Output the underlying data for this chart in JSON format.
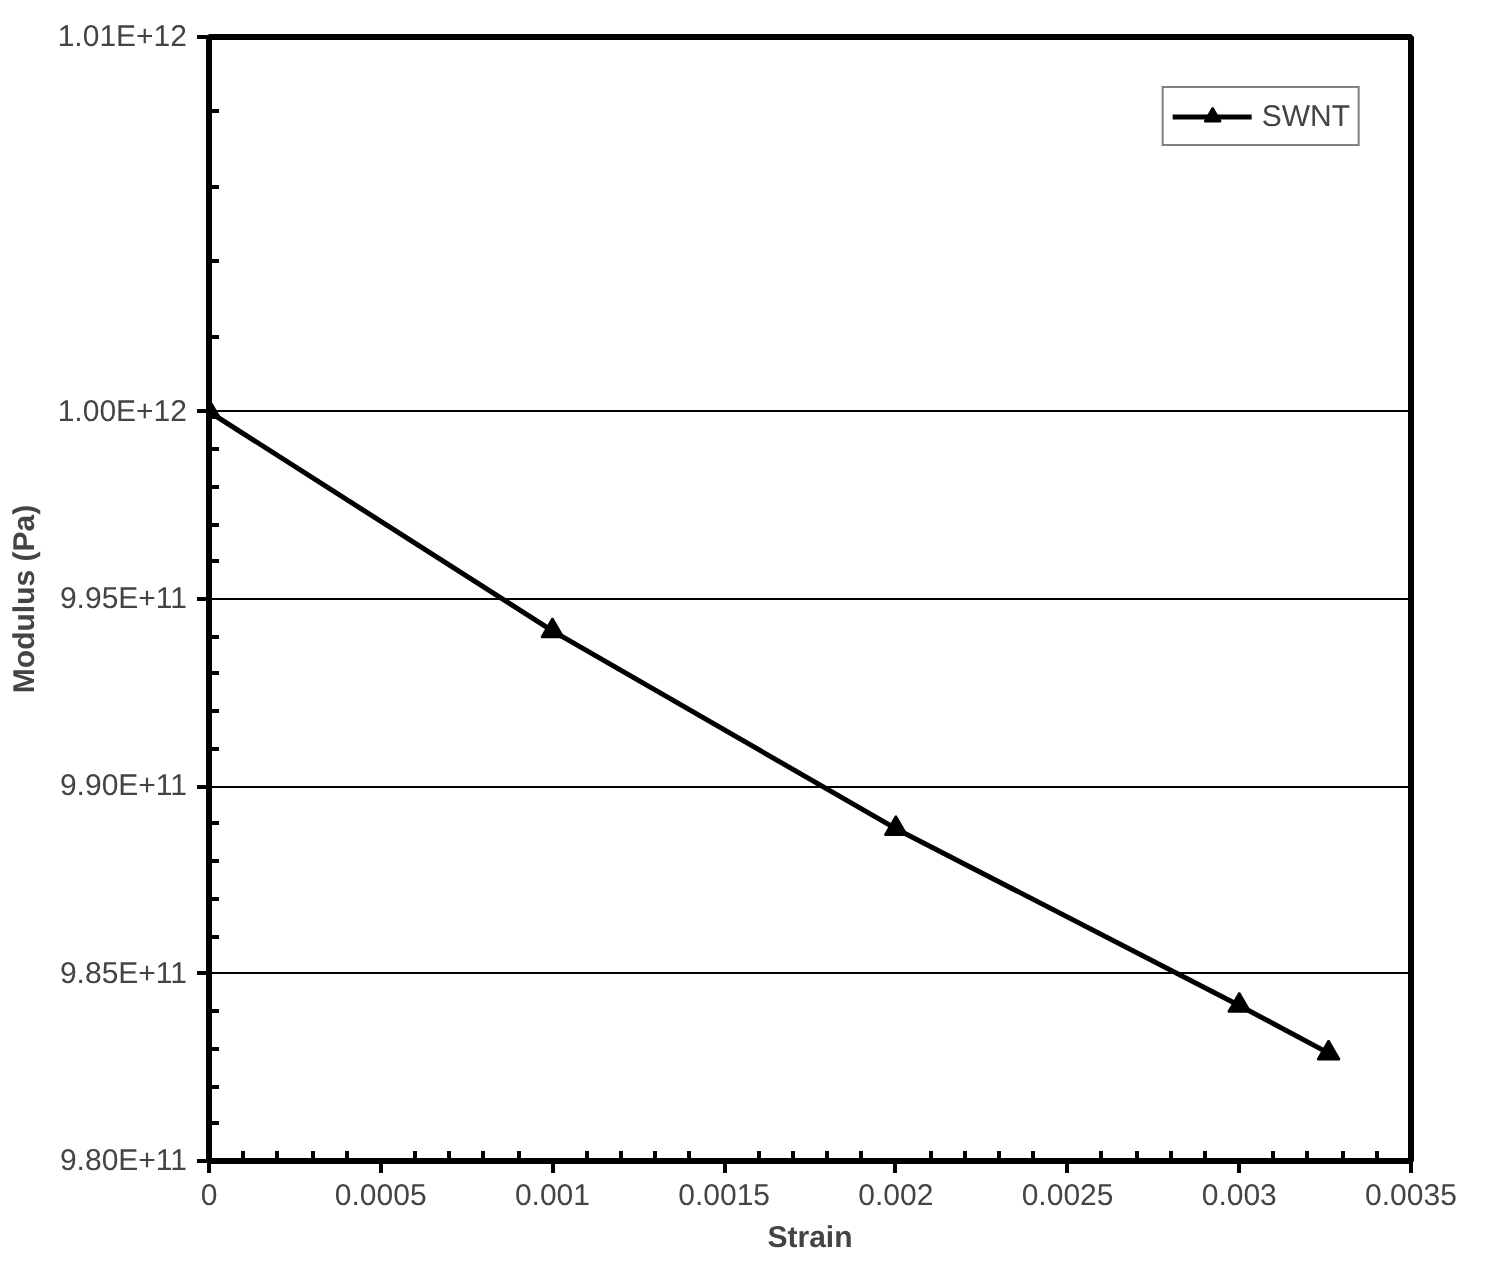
{
  "chart_data": {
    "type": "line",
    "xlabel": "Strain",
    "ylabel": "Modulus (Pa)",
    "x": [
      0,
      0.001,
      0.002,
      0.003,
      0.00326
    ],
    "series": [
      {
        "name": "SWNT",
        "color": "#000000",
        "values": [
          1000000000000.0,
          994150000000.0,
          988870000000.0,
          984150000000.0,
          982880000000.0
        ]
      }
    ],
    "xlim": [
      0,
      0.0035
    ],
    "xticks": [
      0,
      0.0005,
      0.001,
      0.0015,
      0.002,
      0.0025,
      0.003,
      0.0035
    ],
    "ylim": [
      980000000000.0,
      1010000000000.0
    ],
    "yticks": [
      {
        "value": 980000000000.0,
        "label": "9.80E+11"
      },
      {
        "value": 985000000000.0,
        "label": "9.85E+11"
      },
      {
        "value": 990000000000.0,
        "label": "9.90E+11"
      },
      {
        "value": 995000000000.0,
        "label": "9.95E+11"
      },
      {
        "value": 1000000000000.0,
        "label": "1.00E+12"
      },
      {
        "value": 1010000000000.0,
        "label": "1.01E+12"
      }
    ],
    "grid": "y",
    "legend": "top right",
    "marker": "triangle",
    "line_style": "solid"
  }
}
